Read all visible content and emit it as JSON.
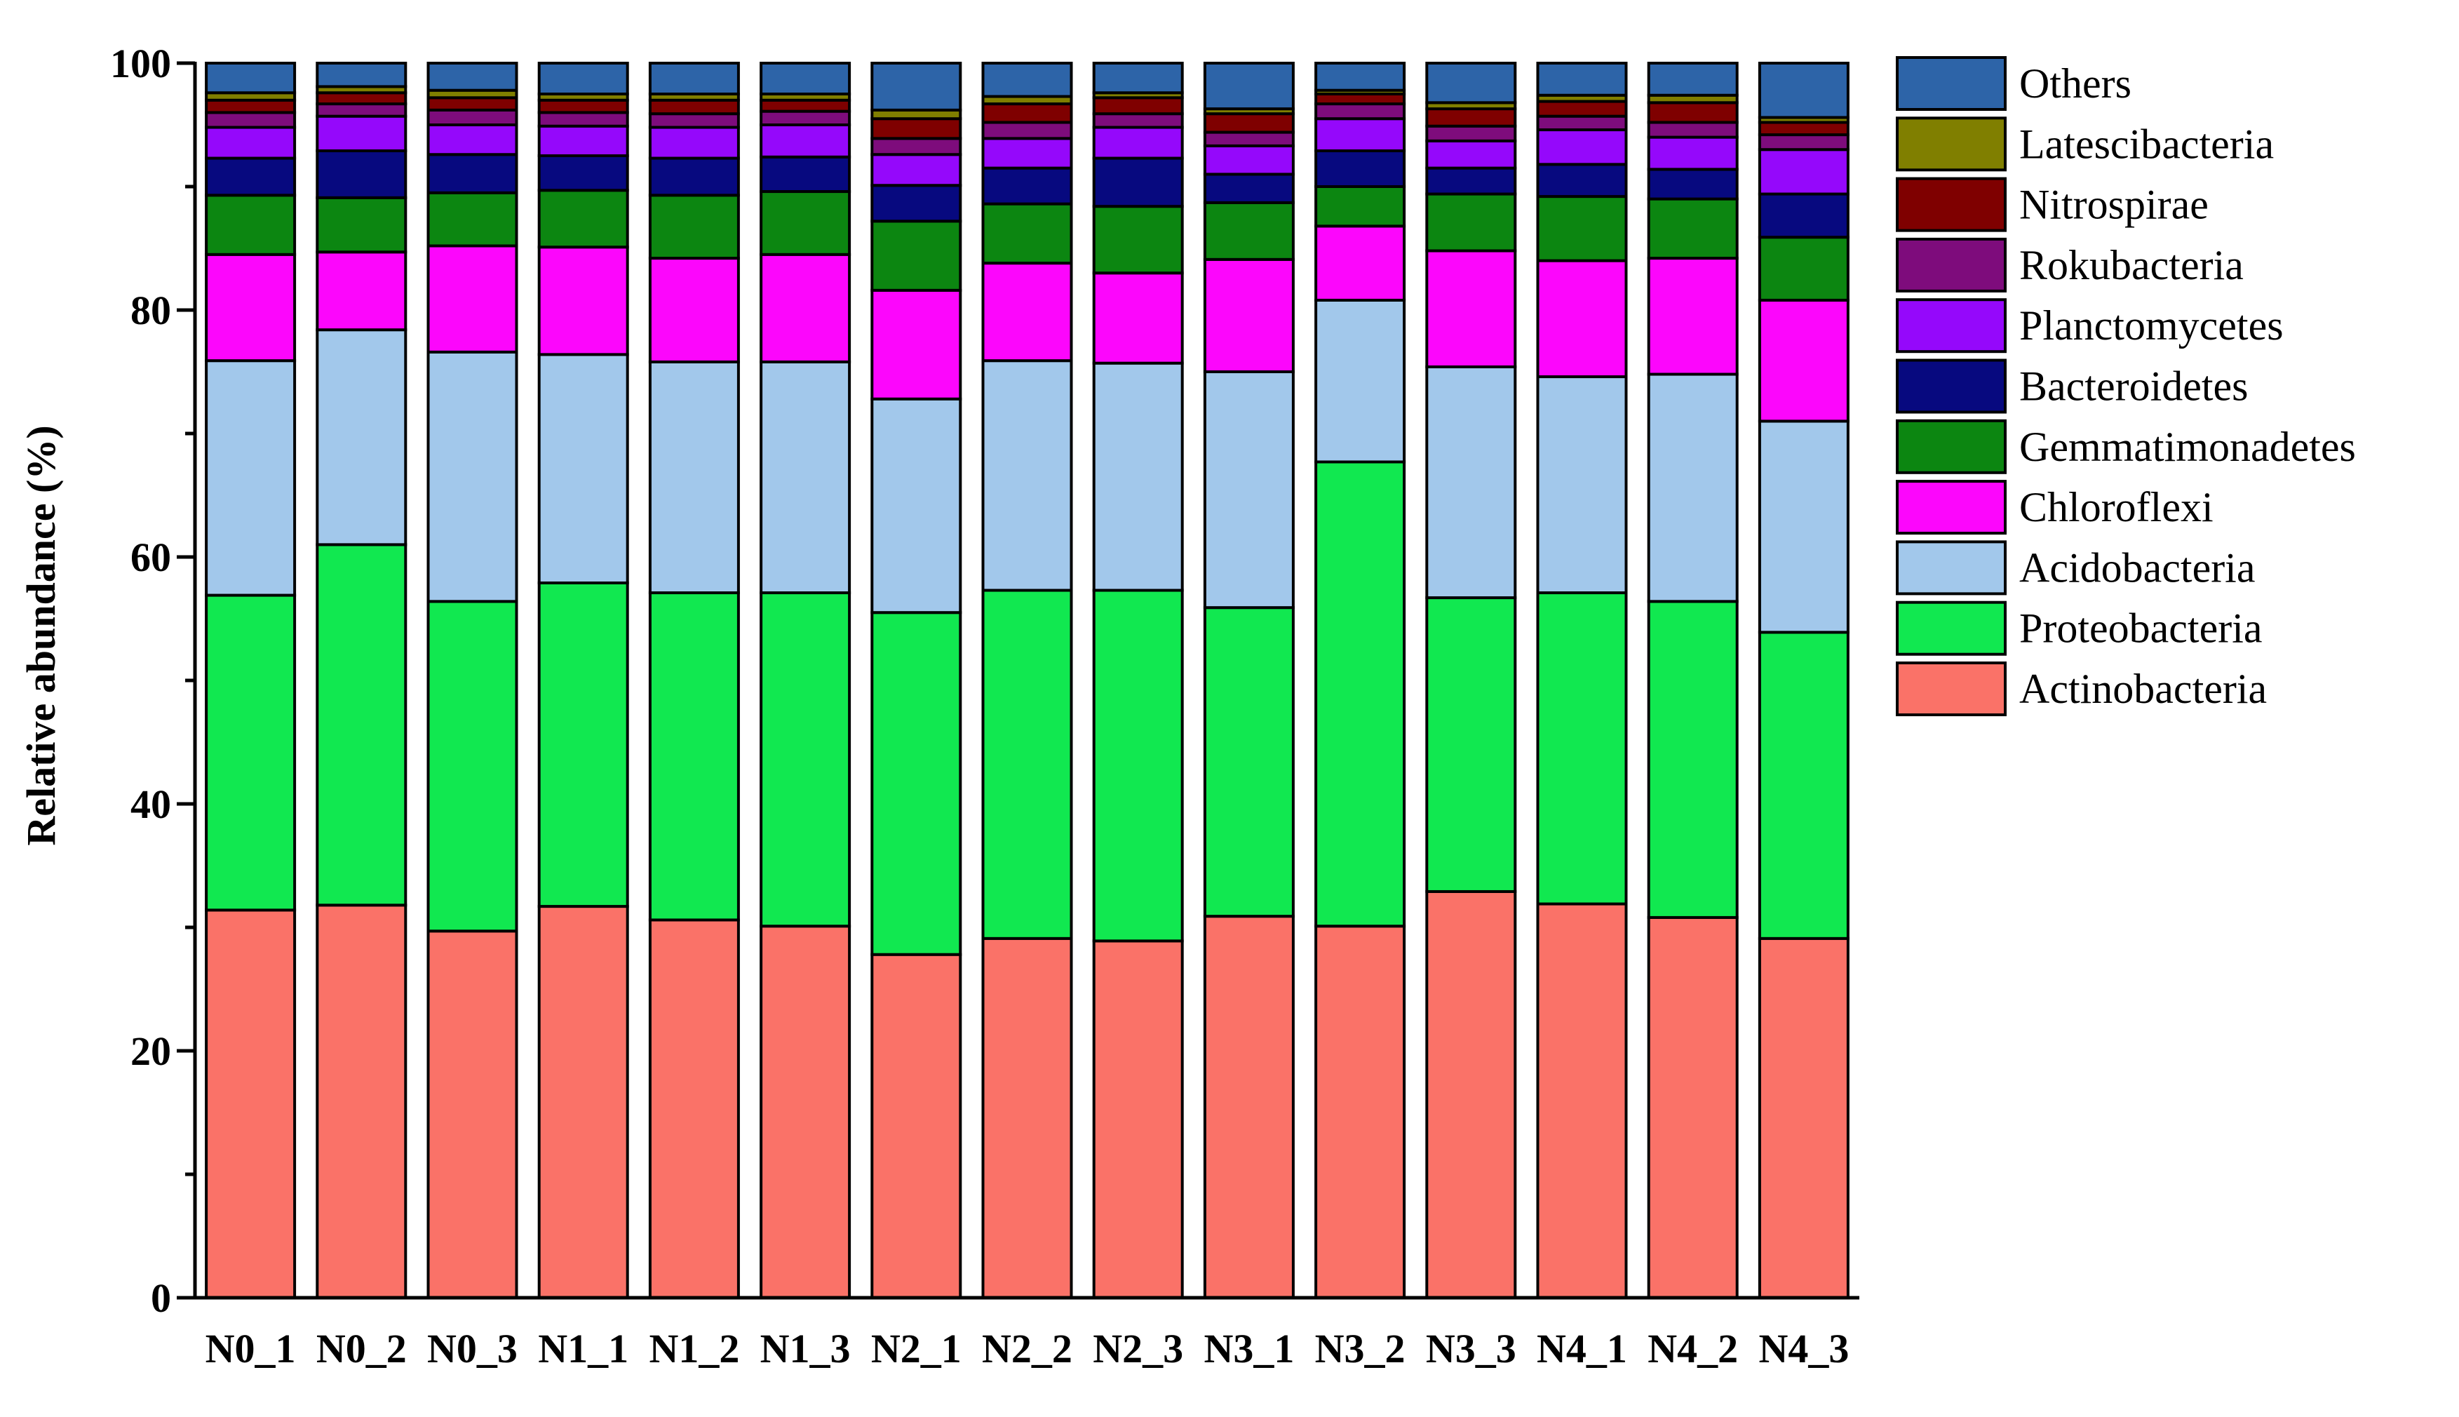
{
  "chart_data": {
    "type": "bar",
    "stacked": true,
    "title": "",
    "xlabel": "",
    "ylabel": "Relative abundance (%)",
    "ylim": [
      0,
      100
    ],
    "yticks": [
      0,
      20,
      40,
      60,
      80,
      100
    ],
    "ytick_labels": [
      "0",
      "20",
      "40",
      "60",
      "80",
      "100"
    ],
    "legend_position": "right",
    "categories": [
      "N0_1",
      "N0_2",
      "N0_3",
      "N1_1",
      "N1_2",
      "N1_3",
      "N2_1",
      "N2_2",
      "N2_3",
      "N3_1",
      "N3_2",
      "N3_3",
      "N4_1",
      "N4_2",
      "N4_3"
    ],
    "series": [
      {
        "name": "Actinobacteria",
        "color": "#FA7268",
        "values": [
          31.4,
          31.8,
          29.7,
          31.7,
          30.6,
          30.1,
          27.8,
          29.1,
          28.9,
          30.9,
          30.1,
          32.9,
          31.9,
          30.8,
          29.1
        ]
      },
      {
        "name": "Proteobacteria",
        "color": "#11E850",
        "values": [
          25.5,
          29.2,
          26.7,
          26.2,
          26.5,
          27.0,
          27.7,
          28.2,
          28.4,
          25.0,
          37.6,
          23.8,
          25.2,
          25.6,
          24.8
        ]
      },
      {
        "name": "Acidobacteria",
        "color": "#A2C8EB",
        "values": [
          19.0,
          17.4,
          20.2,
          18.5,
          18.7,
          18.7,
          17.3,
          18.6,
          18.4,
          19.1,
          13.1,
          18.7,
          17.5,
          18.4,
          17.1
        ]
      },
      {
        "name": "Chloroflexi",
        "color": "#FC06FC",
        "values": [
          8.6,
          6.3,
          8.6,
          8.7,
          8.4,
          8.7,
          8.8,
          7.9,
          7.3,
          9.1,
          6.0,
          9.4,
          9.4,
          9.4,
          9.8
        ]
      },
      {
        "name": "Gemmatimonadetes",
        "color": "#0C8611",
        "values": [
          4.8,
          4.4,
          4.3,
          4.6,
          5.1,
          5.1,
          5.6,
          4.8,
          5.4,
          4.6,
          3.2,
          4.6,
          5.2,
          4.8,
          5.1
        ]
      },
      {
        "name": "Bacteroidetes",
        "color": "#07097F",
        "values": [
          3.0,
          3.8,
          3.1,
          2.8,
          3.0,
          2.8,
          2.9,
          2.9,
          3.9,
          2.3,
          2.9,
          2.1,
          2.6,
          2.4,
          3.5
        ]
      },
      {
        "name": "Planctomycetes",
        "color": "#9508FB",
        "values": [
          2.5,
          2.8,
          2.4,
          2.4,
          2.5,
          2.6,
          2.5,
          2.4,
          2.5,
          2.3,
          2.6,
          2.2,
          2.8,
          2.6,
          3.6
        ]
      },
      {
        "name": "Rokubacteria",
        "color": "#7E0C7C",
        "values": [
          1.2,
          1.0,
          1.2,
          1.1,
          1.1,
          1.1,
          1.3,
          1.3,
          1.1,
          1.1,
          1.2,
          1.2,
          1.1,
          1.2,
          1.2
        ]
      },
      {
        "name": "Nitrospirae",
        "color": "#7F0000",
        "values": [
          1.0,
          0.9,
          1.0,
          1.0,
          1.1,
          0.9,
          1.6,
          1.5,
          1.3,
          1.5,
          0.8,
          1.4,
          1.2,
          1.6,
          1.0
        ]
      },
      {
        "name": "Latescibacteria",
        "color": "#807F00",
        "values": [
          0.6,
          0.5,
          0.6,
          0.5,
          0.5,
          0.5,
          0.7,
          0.6,
          0.4,
          0.4,
          0.3,
          0.5,
          0.5,
          0.6,
          0.4
        ]
      },
      {
        "name": "Others",
        "color": "#2D64A8",
        "values": [
          2.4,
          1.9,
          2.2,
          2.5,
          2.5,
          2.5,
          3.8,
          2.7,
          2.4,
          3.7,
          2.2,
          3.2,
          2.6,
          2.6,
          4.4
        ]
      }
    ]
  }
}
